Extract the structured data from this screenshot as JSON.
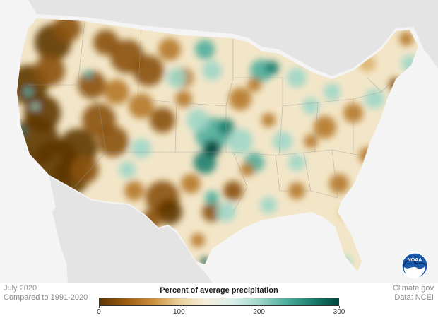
{
  "caption": {
    "date": "July 2020",
    "comparison": "Compared to 1991-2020",
    "credit": "Climate.gov",
    "data_source": "Data: NCEI"
  },
  "legend": {
    "title": "Percent of average precipitation",
    "ticks": [
      "0",
      "100",
      "200",
      "300"
    ],
    "tick_values": [
      0,
      100,
      200,
      300
    ],
    "range": [
      0,
      300
    ],
    "colors": [
      "#5e3606",
      "#9a5c12",
      "#c98c3a",
      "#e9cf98",
      "#f6eedb",
      "#d9efe9",
      "#9fd6c8",
      "#4fae9c",
      "#1d7f6f",
      "#00473d"
    ]
  },
  "logo": {
    "name": "NOAA",
    "text": "NOAA"
  },
  "map": {
    "background": "#f4f4f4",
    "land": "#e4e4e4",
    "dry_colors": [
      "#5e3606",
      "#8a5212",
      "#b5782a",
      "#dcb26b"
    ],
    "wet_colors": [
      "#9fd6c8",
      "#4fae9c",
      "#1d7f6f",
      "#00473d"
    ]
  }
}
